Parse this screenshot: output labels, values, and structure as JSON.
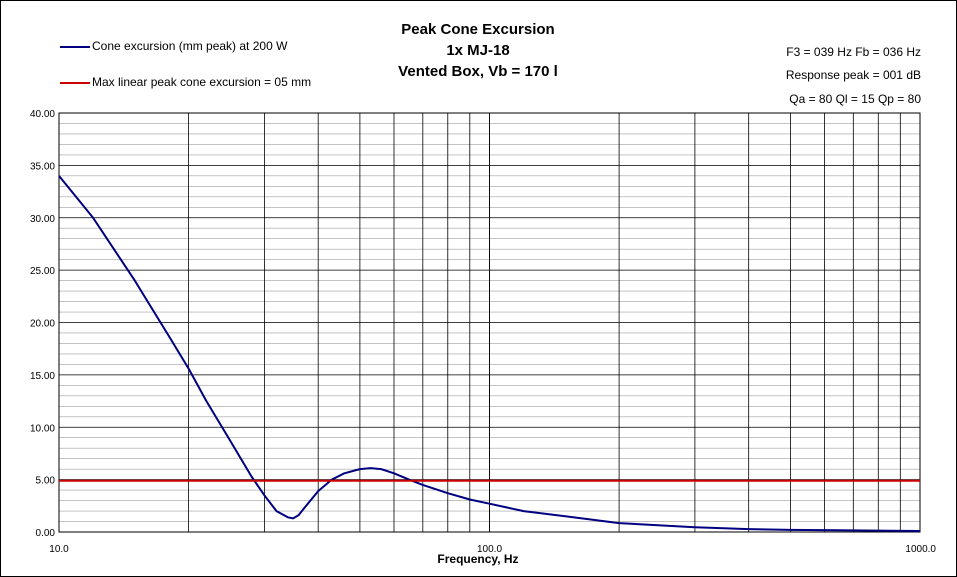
{
  "chart_data": {
    "type": "line",
    "title_lines": [
      "Peak Cone Excursion",
      "1x MJ-18",
      "Vented Box, Vb = 170 l"
    ],
    "xlabel": "Frequency, Hz",
    "ylabel": "",
    "x_scale": "log",
    "xlim": [
      10,
      1000
    ],
    "ylim": [
      0,
      40
    ],
    "x_tick_labels": [
      "10.0",
      "100.0",
      "1000.0"
    ],
    "x_tick_values": [
      10,
      100,
      1000
    ],
    "y_tick_labels": [
      "0.00",
      "5.00",
      "10.00",
      "15.00",
      "20.00",
      "25.00",
      "30.00",
      "35.00",
      "40.00"
    ],
    "y_tick_values": [
      0,
      5,
      10,
      15,
      20,
      25,
      30,
      35,
      40
    ],
    "grid": true,
    "legend_position": "top-left",
    "series": [
      {
        "name": "Cone excursion (mm peak) at 200 W",
        "color": "#000080",
        "x": [
          10,
          12,
          15,
          18,
          20,
          22,
          25,
          28,
          30,
          32,
          34,
          35,
          36,
          38,
          40,
          43,
          46,
          50,
          53,
          56,
          60,
          65,
          70,
          80,
          90,
          100,
          120,
          150,
          200,
          300,
          400,
          500,
          700,
          1000
        ],
        "y": [
          34.0,
          30.0,
          24.0,
          18.7,
          15.6,
          12.5,
          8.7,
          5.3,
          3.5,
          2.0,
          1.4,
          1.3,
          1.6,
          2.8,
          3.9,
          5.0,
          5.6,
          6.0,
          6.1,
          6.0,
          5.6,
          5.0,
          4.5,
          3.7,
          3.1,
          2.7,
          2.0,
          1.5,
          0.85,
          0.45,
          0.28,
          0.2,
          0.15,
          0.1
        ]
      },
      {
        "name": "Max linear peak cone excursion = 05 mm",
        "color": "#cc0000",
        "x": [
          10,
          1000
        ],
        "y": [
          4.9,
          4.9
        ]
      }
    ],
    "annotations": [
      "F3 = 039 Hz  Fb = 036 Hz",
      "Response peak = 001 dB",
      "Qa = 80  Ql = 15  Qp = 80"
    ]
  },
  "colors": {
    "major_grid": "#000000",
    "minor_grid": "#a0a0a0",
    "background": "#ffffff"
  }
}
